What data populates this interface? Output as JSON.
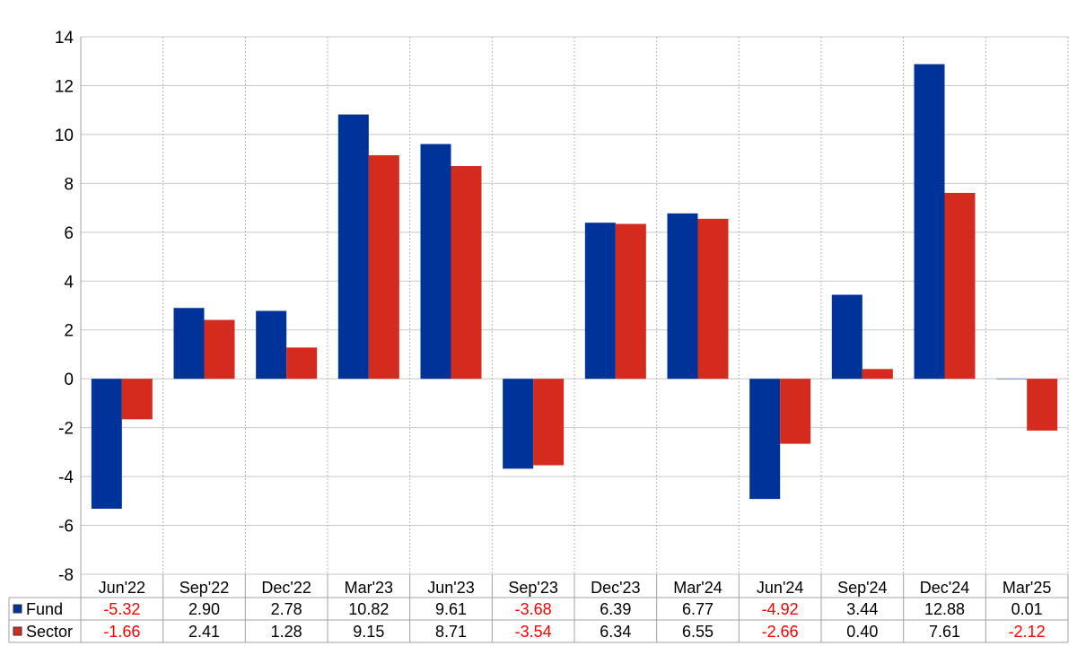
{
  "chart_data": {
    "type": "bar",
    "categories": [
      "Jun'22",
      "Sep'22",
      "Dec'22",
      "Mar'23",
      "Jun'23",
      "Sep'23",
      "Dec'23",
      "Mar'24",
      "Jun'24",
      "Sep'24",
      "Dec'24",
      "Mar'25"
    ],
    "series": [
      {
        "name": "Fund",
        "color": "#003399",
        "values": [
          -5.32,
          2.9,
          2.78,
          10.82,
          9.61,
          -3.68,
          6.39,
          6.77,
          -4.92,
          3.44,
          12.88,
          0.01
        ],
        "labels": [
          "-5.32",
          "2.90",
          "2.78",
          "10.82",
          "9.61",
          "-3.68",
          "6.39",
          "6.77",
          "-4.92",
          "3.44",
          "12.88",
          "0.01"
        ]
      },
      {
        "name": "Sector",
        "color": "#d52b1e",
        "values": [
          -1.66,
          2.41,
          1.28,
          9.15,
          8.71,
          -3.54,
          6.34,
          6.55,
          -2.66,
          0.4,
          7.61,
          -2.12
        ],
        "labels": [
          "-1.66",
          "2.41",
          "1.28",
          "9.15",
          "8.71",
          "-3.54",
          "6.34",
          "6.55",
          "-2.66",
          "0.40",
          "7.61",
          "-2.12"
        ]
      }
    ],
    "ylim": [
      -8,
      14
    ],
    "yticks": [
      "-8",
      "-6",
      "-4",
      "-2",
      "0",
      "2",
      "4",
      "6",
      "8",
      "10",
      "12",
      "14"
    ],
    "grid": true,
    "legend": "data-table-below",
    "negative_label_color": "#ff0000"
  }
}
